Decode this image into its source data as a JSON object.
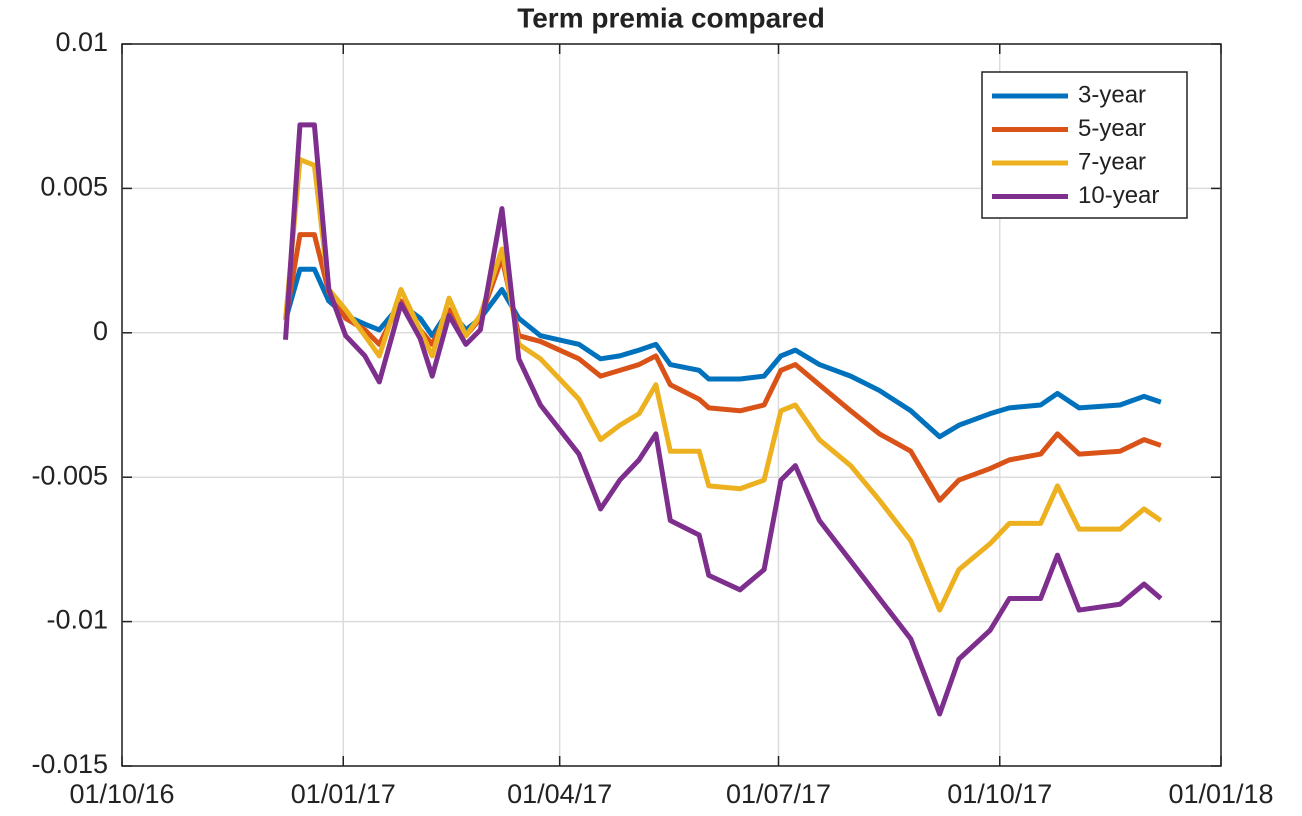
{
  "chart_data": {
    "type": "line",
    "title": "Term premia compared",
    "x": [
      "08/12/16",
      "14/12/16",
      "20/12/16",
      "26/12/16",
      "02/01/17",
      "10/01/17",
      "16/01/17",
      "25/01/17",
      "02/02/17",
      "07/02/17",
      "14/02/17",
      "21/02/17",
      "27/02/17",
      "08/03/17",
      "15/03/17",
      "24/03/17",
      "09/04/17",
      "18/04/17",
      "26/04/17",
      "04/05/17",
      "11/05/17",
      "17/05/17",
      "29/05/17",
      "02/06/17",
      "15/06/17",
      "25/06/17",
      "02/07/17",
      "08/07/17",
      "18/07/17",
      "31/07/17",
      "12/08/17",
      "25/08/17",
      "06/09/17",
      "14/09/17",
      "27/09/17",
      "05/10/17",
      "18/10/17",
      "25/10/17",
      "03/11/17",
      "20/11/17",
      "30/11/17",
      "07/12/17"
    ],
    "series": [
      {
        "name": "3-year",
        "color": "#0072BD",
        "values": [
          0.00045,
          0.0022,
          0.0022,
          0.0011,
          0.0006,
          0.0003,
          0.0001,
          0.001,
          0.0005,
          -0.0001,
          0.0008,
          0.0001,
          0.0005,
          0.0015,
          0.0005,
          -0.0001,
          -0.0004,
          -0.0009,
          -0.0008,
          -0.0006,
          -0.0004,
          -0.0011,
          -0.0013,
          -0.0016,
          -0.0016,
          -0.0015,
          -0.0008,
          -0.0006,
          -0.0011,
          -0.0015,
          -0.002,
          -0.0027,
          -0.0036,
          -0.0032,
          -0.0028,
          -0.0026,
          -0.0025,
          -0.0021,
          -0.0026,
          -0.0025,
          -0.0022,
          -0.0024
        ]
      },
      {
        "name": "5-year",
        "color": "#D95319",
        "values": [
          0.00045,
          0.0034,
          0.0034,
          0.0014,
          0.0005,
          0.0001,
          -0.0004,
          0.0011,
          0.0001,
          -0.0004,
          0.0008,
          -0.0001,
          0.0005,
          0.0026,
          -0.0001,
          -0.0003,
          -0.0009,
          -0.0015,
          -0.0013,
          -0.0011,
          -0.0008,
          -0.0018,
          -0.0023,
          -0.0026,
          -0.0027,
          -0.0025,
          -0.0013,
          -0.0011,
          -0.0018,
          -0.0027,
          -0.0035,
          -0.0041,
          -0.0058,
          -0.0051,
          -0.0047,
          -0.0044,
          -0.0042,
          -0.0035,
          -0.0042,
          -0.0041,
          -0.0037,
          -0.0039
        ]
      },
      {
        "name": "7-year",
        "color": "#EDB120",
        "values": [
          0.00045,
          0.006,
          0.0058,
          0.0015,
          0.0008,
          -0.0001,
          -0.0008,
          0.0015,
          0.0001,
          -0.0008,
          0.0012,
          -0.0001,
          0.0006,
          0.0029,
          -0.0004,
          -0.0009,
          -0.0023,
          -0.0037,
          -0.0032,
          -0.0028,
          -0.0018,
          -0.0041,
          -0.0041,
          -0.0053,
          -0.0054,
          -0.0051,
          -0.0027,
          -0.0025,
          -0.0037,
          -0.0046,
          -0.0058,
          -0.0072,
          -0.0096,
          -0.0082,
          -0.0073,
          -0.0066,
          -0.0066,
          -0.0053,
          -0.0068,
          -0.0068,
          -0.0061,
          -0.0065
        ]
      },
      {
        "name": "10-year",
        "color": "#7E2F8E",
        "values": [
          -0.00024,
          0.0072,
          0.0072,
          0.0015,
          -0.0001,
          -0.0008,
          -0.0017,
          0.001,
          -0.0002,
          -0.0015,
          0.0006,
          -0.0004,
          0.0001,
          0.0043,
          -0.0009,
          -0.0025,
          -0.0042,
          -0.0061,
          -0.0051,
          -0.0044,
          -0.0035,
          -0.0065,
          -0.007,
          -0.0084,
          -0.0089,
          -0.0082,
          -0.0051,
          -0.0046,
          -0.0065,
          -0.0079,
          -0.0092,
          -0.0106,
          -0.0132,
          -0.0113,
          -0.0103,
          -0.0092,
          -0.0092,
          -0.0077,
          -0.0096,
          -0.0094,
          -0.0087,
          -0.0092
        ]
      }
    ],
    "xlim": [
      "01/10/16",
      "01/01/18"
    ],
    "xticks": [
      "01/10/16",
      "01/01/17",
      "01/04/17",
      "01/07/17",
      "01/10/17",
      "01/01/18"
    ],
    "ylim": [
      -0.015,
      0.01
    ],
    "yticks": [
      -0.015,
      -0.01,
      -0.005,
      0,
      0.005,
      0.01
    ],
    "grid": true,
    "legend": "top-right"
  }
}
